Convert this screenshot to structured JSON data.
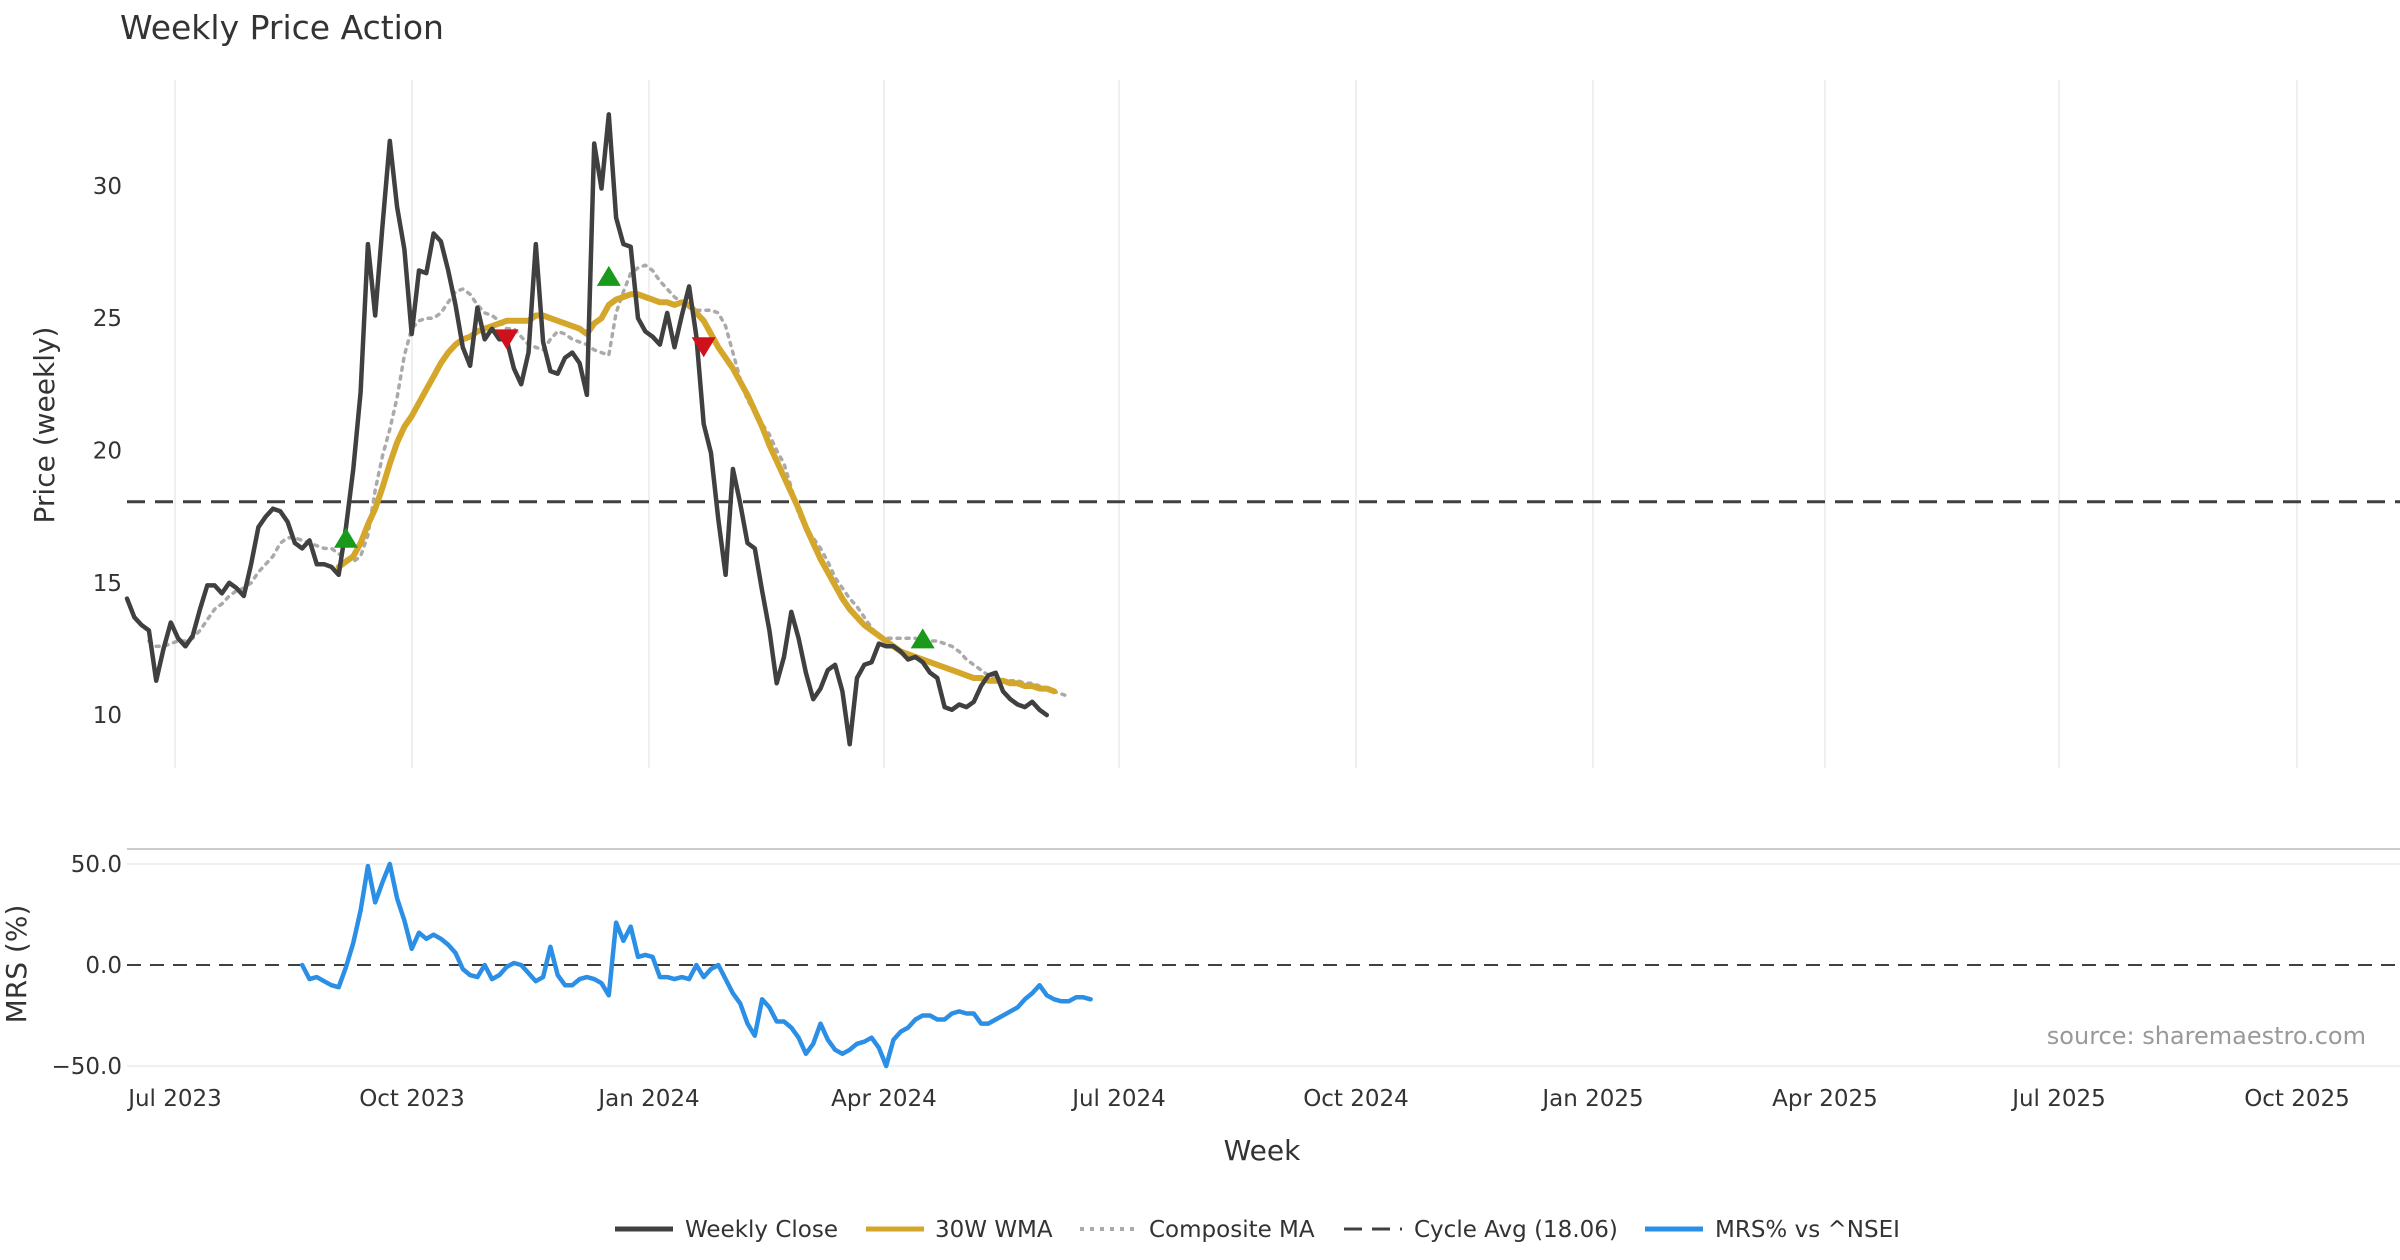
{
  "chart_data": {
    "type": "line",
    "title": "Weekly Price Action",
    "xlabel": "Week",
    "x_ticks": [
      "Jul 2023",
      "Oct 2023",
      "Jan 2024",
      "Apr 2024",
      "Jul 2024",
      "Oct 2024",
      "Jan 2025",
      "Apr 2025",
      "Jul 2025",
      "Oct 2025"
    ],
    "price_panel": {
      "ylabel": "Price (weekly)",
      "ylim": [
        8,
        34
      ],
      "yticks": [
        "10",
        "15",
        "20",
        "25",
        "30"
      ],
      "ytick_values": [
        10,
        15,
        20,
        25,
        30
      ],
      "cycle_avg": 18.06,
      "series": [
        {
          "name": "Weekly Close",
          "color": "#404040",
          "start_week": 0,
          "values": [
            14.4,
            13.7,
            13.4,
            13.2,
            11.3,
            12.5,
            13.5,
            12.9,
            12.6,
            13.0,
            14.0,
            14.9,
            14.9,
            14.6,
            15.0,
            14.8,
            14.5,
            15.7,
            17.1,
            17.5,
            17.8,
            17.7,
            17.3,
            16.5,
            16.3,
            16.6,
            15.7,
            15.7,
            15.6,
            15.3,
            17.1,
            19.3,
            22.2,
            27.8,
            25.1,
            28.5,
            31.7,
            29.2,
            27.6,
            24.4,
            26.8,
            26.7,
            28.2,
            27.9,
            26.8,
            25.5,
            23.9,
            23.2,
            25.4,
            24.2,
            24.6,
            24.2,
            24.2,
            23.1,
            22.5,
            23.7,
            27.8,
            24.1,
            23.0,
            22.9,
            23.5,
            23.7,
            23.3,
            22.1,
            31.6,
            29.9,
            32.7,
            28.8,
            27.8,
            27.7,
            25.0,
            24.5,
            24.3,
            24.0,
            25.2,
            23.9,
            25.1,
            26.2,
            24.3,
            21.0,
            19.9,
            17.4,
            15.3,
            19.3,
            18.0,
            16.5,
            16.3,
            14.7,
            13.2,
            11.2,
            12.2,
            13.9,
            12.9,
            11.6,
            10.6,
            11.0,
            11.7,
            11.9,
            10.9,
            8.9,
            11.4,
            11.9,
            12.0,
            12.7,
            12.6,
            12.6,
            12.4,
            12.1,
            12.2,
            12.0,
            11.6,
            11.4,
            10.3,
            10.2,
            10.4,
            10.3,
            10.5,
            11.1,
            11.5,
            11.6,
            10.9,
            10.6,
            10.4,
            10.3,
            10.5,
            10.2,
            10.0
          ]
        },
        {
          "name": "30W WMA",
          "color": "#d4a62a",
          "start_week": 29,
          "values": [
            15.6,
            15.8,
            16.0,
            16.5,
            17.2,
            17.8,
            18.6,
            19.5,
            20.3,
            20.9,
            21.3,
            21.8,
            22.3,
            22.8,
            23.3,
            23.7,
            24.0,
            24.2,
            24.3,
            24.5,
            24.6,
            24.7,
            24.8,
            24.9,
            24.9,
            24.9,
            24.9,
            25.1,
            25.1,
            25.0,
            24.9,
            24.8,
            24.7,
            24.6,
            24.4,
            24.8,
            25.0,
            25.5,
            25.7,
            25.8,
            25.9,
            25.9,
            25.8,
            25.7,
            25.6,
            25.6,
            25.5,
            25.6,
            25.5,
            25.2,
            24.9,
            24.4,
            23.9,
            23.5,
            23.1,
            22.6,
            22.1,
            21.5,
            20.9,
            20.2,
            19.6,
            19.0,
            18.4,
            17.8,
            17.1,
            16.5,
            15.9,
            15.4,
            14.9,
            14.4,
            14.0,
            13.7,
            13.4,
            13.2,
            13.0,
            12.8,
            12.6,
            12.4,
            12.3,
            12.2,
            12.1,
            12.0,
            11.9,
            11.8,
            11.7,
            11.6,
            11.5,
            11.4,
            11.4,
            11.3,
            11.3,
            11.3,
            11.2,
            11.2,
            11.1,
            11.1,
            11.0,
            11.0,
            10.9
          ]
        },
        {
          "name": "Composite MA",
          "color": "#aaaaaa",
          "start_week": 3,
          "values": [
            12.8,
            12.6,
            12.6,
            12.7,
            12.8,
            12.8,
            12.9,
            13.2,
            13.6,
            14.0,
            14.2,
            14.5,
            14.7,
            14.8,
            15.0,
            15.4,
            15.7,
            16.0,
            16.5,
            16.7,
            16.7,
            16.6,
            16.5,
            16.4,
            16.3,
            16.3,
            16.1,
            15.9,
            15.8,
            16.0,
            16.8,
            18.5,
            19.8,
            20.8,
            22.0,
            23.6,
            24.6,
            24.9,
            25.0,
            25.0,
            25.2,
            25.6,
            26.0,
            26.1,
            25.9,
            25.5,
            25.2,
            25.1,
            24.9,
            24.6,
            24.6,
            24.3,
            24.0,
            23.9,
            23.8,
            24.2,
            24.5,
            24.4,
            24.2,
            24.1,
            24.0,
            23.8,
            23.7,
            23.6,
            25.2,
            26.0,
            26.7,
            26.9,
            27.0,
            26.8,
            26.4,
            26.1,
            25.8,
            25.6,
            25.4,
            25.3,
            25.3,
            25.3,
            25.2,
            24.7,
            23.7,
            22.7,
            21.9,
            21.5,
            21.0,
            20.6,
            20.0,
            19.5,
            18.6,
            17.6,
            17.1,
            16.7,
            16.3,
            15.8,
            15.2,
            14.8,
            14.4,
            14.1,
            13.7,
            13.3,
            13.0,
            12.9,
            12.9,
            12.9,
            12.9,
            12.9,
            12.8,
            12.8,
            12.8,
            12.7,
            12.6,
            12.4,
            12.1,
            11.9,
            11.7,
            11.5,
            11.4,
            11.3,
            11.3,
            11.3,
            11.2,
            11.2,
            11.1,
            11.0,
            10.9,
            10.8,
            10.7
          ]
        }
      ],
      "buy_markers": [
        {
          "week": 30,
          "price": 16.7
        },
        {
          "week": 66,
          "price": 26.6
        },
        {
          "week": 109,
          "price": 12.9
        }
      ],
      "sell_markers": [
        {
          "week": 52,
          "price": 24.2
        },
        {
          "week": 79,
          "price": 23.9
        }
      ]
    },
    "mrs_panel": {
      "ylabel": "MRS (%)",
      "ylim": [
        -52,
        52
      ],
      "yticks": [
        "50.0",
        "0.0",
        "−50.0"
      ],
      "ytick_values": [
        50,
        0,
        -50
      ],
      "series": [
        {
          "name": "MRS% vs ^NSEI",
          "color": "#2b8fe6",
          "start_week": 24,
          "values": [
            0,
            -7,
            -6,
            -8,
            -10,
            -11,
            -1,
            11,
            27,
            49,
            31,
            41,
            50,
            33,
            22,
            8,
            16,
            13,
            15,
            13,
            10,
            6,
            -2,
            -5,
            -6,
            0,
            -7,
            -5,
            -1,
            1,
            0,
            -4,
            -8,
            -6,
            9,
            -5,
            -10,
            -10,
            -7,
            -6,
            -7,
            -9,
            -15,
            21,
            12,
            19,
            4,
            5,
            4,
            -6,
            -6,
            -7,
            -6,
            -7,
            0,
            -6,
            -2,
            0,
            -7,
            -14,
            -19,
            -29,
            -35,
            -17,
            -21,
            -28,
            -28,
            -31,
            -36,
            -44,
            -39,
            -29,
            -37,
            -42,
            -44,
            -42,
            -39,
            -38,
            -36,
            -41,
            -50,
            -37,
            -33,
            -31,
            -27,
            -25,
            -25,
            -27,
            -27,
            -24,
            -23,
            -24,
            -24,
            -29,
            -29,
            -27,
            -25,
            -23,
            -21,
            -17,
            -14,
            -10,
            -15,
            -17,
            -18,
            -18,
            -16,
            -16,
            -17
          ]
        }
      ]
    },
    "legend": [
      {
        "label": "Weekly Close",
        "color": "#404040",
        "style": "solid"
      },
      {
        "label": "30W WMA",
        "color": "#d4a62a",
        "style": "solid"
      },
      {
        "label": "Composite MA",
        "color": "#aaaaaa",
        "style": "dotted"
      },
      {
        "label": "Cycle Avg (18.06)",
        "color": "#404040",
        "style": "dashed"
      },
      {
        "label": "MRS% vs ^NSEI",
        "color": "#2b8fe6",
        "style": "solid"
      }
    ],
    "source": "source: sharemaestro.com"
  },
  "colors": {
    "buy_marker": "#1a9a1a",
    "sell_marker": "#d0111b",
    "grid": "#ebebeb",
    "panel_divider": "#cccccc"
  }
}
